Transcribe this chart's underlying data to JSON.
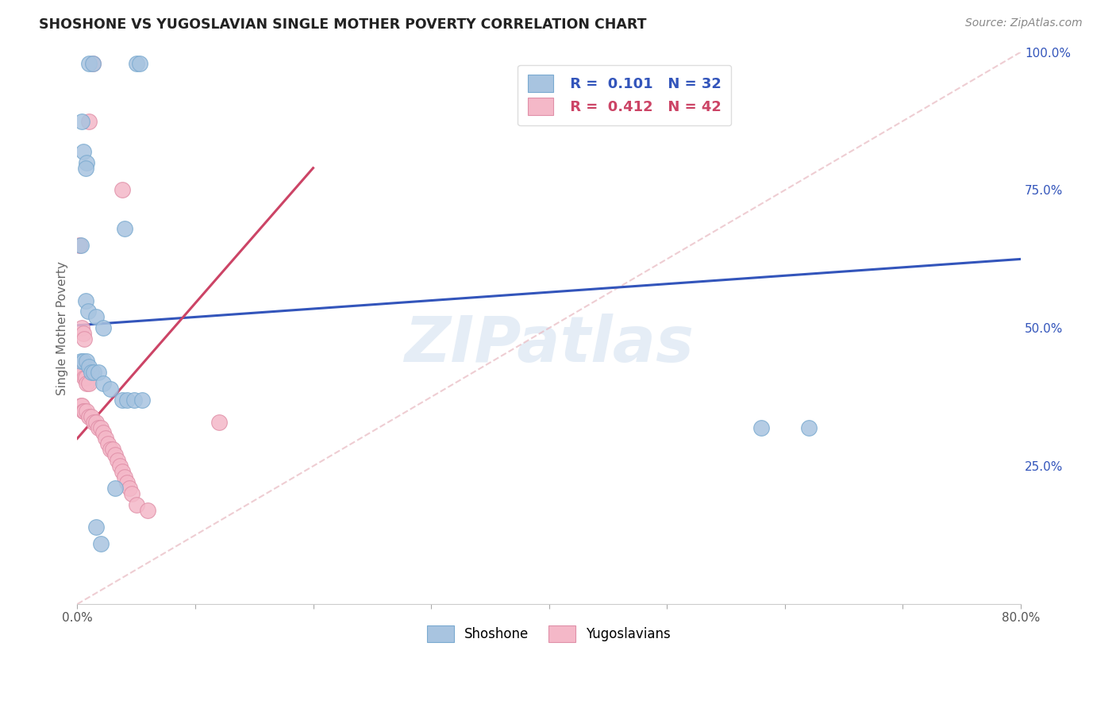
{
  "title": "SHOSHONE VS YUGOSLAVIAN SINGLE MOTHER POVERTY CORRELATION CHART",
  "source": "Source: ZipAtlas.com",
  "ylabel": "Single Mother Poverty",
  "xlim": [
    0,
    0.8
  ],
  "ylim": [
    0,
    1.0
  ],
  "xtick_positions": [
    0.0,
    0.1,
    0.2,
    0.3,
    0.4,
    0.5,
    0.6,
    0.7,
    0.8
  ],
  "xticklabels": [
    "0.0%",
    "",
    "",
    "",
    "",
    "",
    "",
    "",
    "80.0%"
  ],
  "ytick_right_positions": [
    0.25,
    0.5,
    0.75,
    1.0
  ],
  "ytick_right_labels": [
    "25.0%",
    "50.0%",
    "75.0%",
    "100.0%"
  ],
  "watermark": "ZIPatlas",
  "shoshone_color": "#a8c4e0",
  "shoshone_edge": "#7aaad0",
  "yugoslavian_color": "#f4b8c8",
  "yugoslavian_edge": "#e090a8",
  "blue_line_color": "#3355bb",
  "pink_line_color": "#cc4466",
  "ref_line_color": "#e8b8c0",
  "grid_color": "#e0e0e0",
  "background_color": "#ffffff",
  "blue_line_x0": 0.0,
  "blue_line_y0": 0.505,
  "blue_line_x1": 0.8,
  "blue_line_y1": 0.625,
  "pink_line_x0": 0.0,
  "pink_line_y0": 0.3,
  "pink_line_x1": 0.2,
  "pink_line_y1": 0.79,
  "ref_line_x0": 0.0,
  "ref_line_y0": 0.0,
  "ref_line_x1": 0.8,
  "ref_line_y1": 1.0,
  "shoshone_pts_x": [
    0.01,
    0.013,
    0.05,
    0.053,
    0.004,
    0.005,
    0.008,
    0.007,
    0.003,
    0.04,
    0.007,
    0.009,
    0.016,
    0.022,
    0.003,
    0.005,
    0.008,
    0.01,
    0.012,
    0.014,
    0.018,
    0.022,
    0.028,
    0.038,
    0.042,
    0.048,
    0.055,
    0.032,
    0.016,
    0.02,
    0.58,
    0.62
  ],
  "shoshone_pts_y": [
    0.98,
    0.98,
    0.98,
    0.98,
    0.875,
    0.82,
    0.8,
    0.79,
    0.65,
    0.68,
    0.55,
    0.53,
    0.52,
    0.5,
    0.44,
    0.44,
    0.44,
    0.43,
    0.42,
    0.42,
    0.42,
    0.4,
    0.39,
    0.37,
    0.37,
    0.37,
    0.37,
    0.21,
    0.14,
    0.11,
    0.32,
    0.32
  ],
  "yugoslavian_pts_x": [
    0.013,
    0.01,
    0.038,
    0.002,
    0.004,
    0.005,
    0.006,
    0.002,
    0.003,
    0.004,
    0.005,
    0.006,
    0.007,
    0.008,
    0.01,
    0.003,
    0.004,
    0.005,
    0.006,
    0.008,
    0.01,
    0.012,
    0.014,
    0.016,
    0.018,
    0.02,
    0.022,
    0.024,
    0.026,
    0.028,
    0.03,
    0.032,
    0.034,
    0.036,
    0.038,
    0.04,
    0.042,
    0.044,
    0.046,
    0.05,
    0.06,
    0.12
  ],
  "yugoslavian_pts_y": [
    0.98,
    0.875,
    0.75,
    0.65,
    0.5,
    0.49,
    0.48,
    0.43,
    0.42,
    0.42,
    0.42,
    0.41,
    0.41,
    0.4,
    0.4,
    0.36,
    0.36,
    0.35,
    0.35,
    0.35,
    0.34,
    0.34,
    0.33,
    0.33,
    0.32,
    0.32,
    0.31,
    0.3,
    0.29,
    0.28,
    0.28,
    0.27,
    0.26,
    0.25,
    0.24,
    0.23,
    0.22,
    0.21,
    0.2,
    0.18,
    0.17,
    0.33
  ]
}
